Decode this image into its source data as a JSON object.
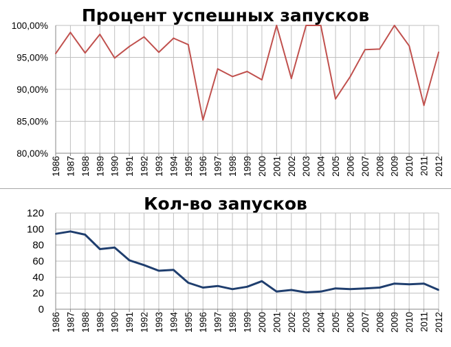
{
  "chart_data": [
    {
      "type": "line",
      "title": "Процент успешных запусков",
      "categories": [
        "1986",
        "1987",
        "1988",
        "1989",
        "1990",
        "1991",
        "1992",
        "1993",
        "1994",
        "1995",
        "1996",
        "1997",
        "1998",
        "1999",
        "2000",
        "2001",
        "2002",
        "2003",
        "2004",
        "2005",
        "2006",
        "2007",
        "2008",
        "2009",
        "2010",
        "2011",
        "2012"
      ],
      "series": [
        {
          "values": [
            95.6,
            98.9,
            95.7,
            98.6,
            94.9,
            96.7,
            98.2,
            95.8,
            98.0,
            97.0,
            85.2,
            93.2,
            92.0,
            92.8,
            91.5,
            100.0,
            91.7,
            100.0,
            100.0,
            88.5,
            92.0,
            96.2,
            96.3,
            100.0,
            96.8,
            87.5,
            95.8
          ],
          "color": "#c0504d"
        }
      ],
      "y_ticks": [
        "80,00%",
        "85,00%",
        "90,00%",
        "95,00%",
        "100,00%"
      ],
      "ylim": [
        80,
        100
      ],
      "grid": true
    },
    {
      "type": "line",
      "title": "Кол-во запусков",
      "categories": [
        "1986",
        "1987",
        "1988",
        "1989",
        "1990",
        "1991",
        "1992",
        "1993",
        "1994",
        "1995",
        "1996",
        "1997",
        "1998",
        "1999",
        "2000",
        "2001",
        "2002",
        "2003",
        "2004",
        "2005",
        "2006",
        "2007",
        "2008",
        "2009",
        "2010",
        "2011",
        "2012"
      ],
      "series": [
        {
          "values": [
            94,
            97,
            93,
            75,
            77,
            61,
            55,
            48,
            49,
            33,
            27,
            29,
            25,
            28,
            35,
            22,
            24,
            21,
            22,
            26,
            25,
            26,
            27,
            32,
            31,
            32,
            24
          ],
          "color": "#1f3e6e"
        }
      ],
      "y_ticks": [
        "0",
        "20",
        "40",
        "60",
        "80",
        "100",
        "120"
      ],
      "ylim": [
        0,
        120
      ],
      "grid": true
    }
  ]
}
